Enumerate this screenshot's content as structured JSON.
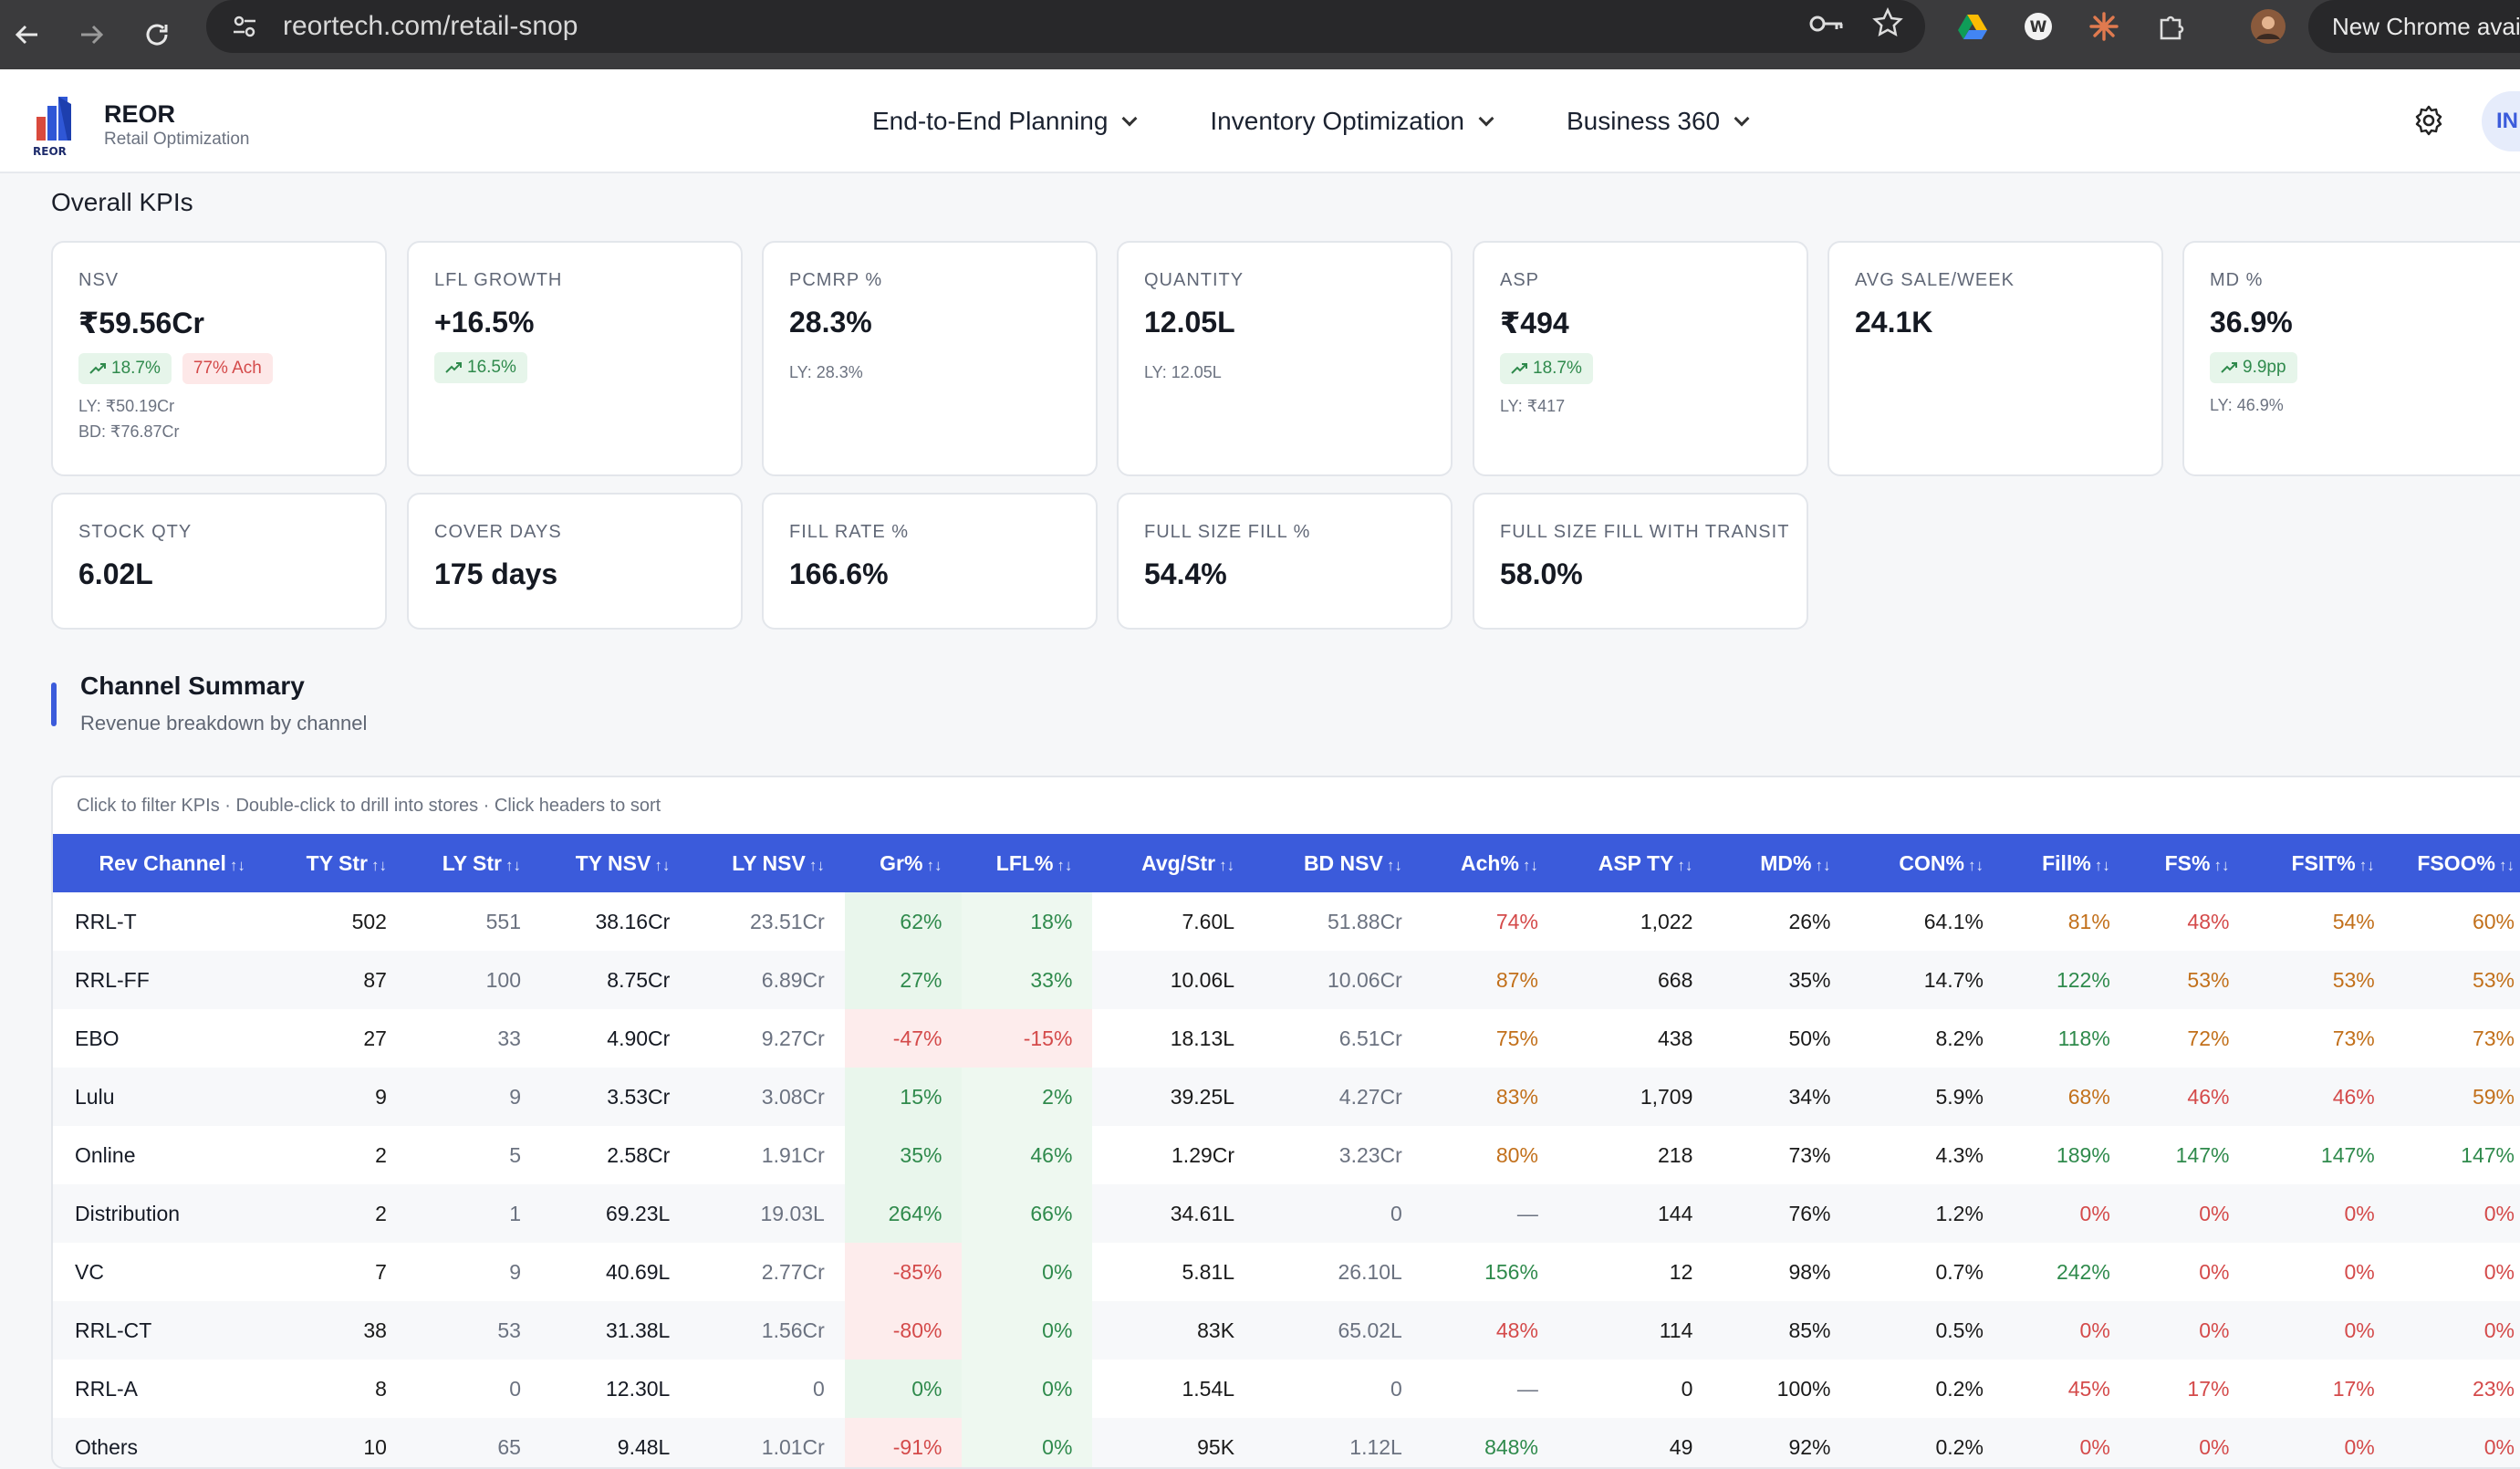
{
  "browser": {
    "url": "reortech.com/retail-snop",
    "chrome_notice": "New Chrome availa"
  },
  "app": {
    "brand_name": "REOR",
    "brand_sub": "Retail Optimization",
    "logo_text": "REOR",
    "nav": [
      {
        "label": "End-to-End Planning"
      },
      {
        "label": "Inventory Optimization"
      },
      {
        "label": "Business 360"
      }
    ],
    "user_chip": "IN"
  },
  "kpis": {
    "title": "Overall KPIs",
    "cards": [
      {
        "label": "NSV",
        "value": "₹59.56Cr",
        "badge_green": "18.7%",
        "badge_red": "77% Ach",
        "sub1": "LY: ₹50.19Cr",
        "sub2": "BD: ₹76.87Cr"
      },
      {
        "label": "LFL GROWTH",
        "value": "+16.5%",
        "badge_green": "16.5%"
      },
      {
        "label": "PCMRP %",
        "value": "28.3%",
        "sub1": "LY: 28.3%"
      },
      {
        "label": "QUANTITY",
        "value": "12.05L",
        "sub1": "LY: 12.05L"
      },
      {
        "label": "ASP",
        "value": "₹494",
        "badge_green": "18.7%",
        "sub1": "LY: ₹417"
      },
      {
        "label": "AVG SALE/WEEK",
        "value": "24.1K"
      },
      {
        "label": "MD %",
        "value": "36.9%",
        "badge_green": "9.9pp",
        "sub1": "LY: 46.9%"
      },
      {
        "label": "STOCK QTY",
        "value": "6.02L"
      },
      {
        "label": "COVER DAYS",
        "value": "175 days"
      },
      {
        "label": "FILL RATE %",
        "value": "166.6%"
      },
      {
        "label": "FULL SIZE FILL %",
        "value": "54.4%"
      },
      {
        "label": "FULL SIZE FILL WITH TRANSIT",
        "value": "58.0%"
      }
    ]
  },
  "channel_summary": {
    "title": "Channel Summary",
    "subtitle": "Revenue breakdown by channel",
    "hint": "Click to filter KPIs · Double-click to drill into stores · Click headers to sort",
    "sort_glyph": "↑↓",
    "columns": [
      "Rev Channel",
      "TY Str",
      "LY Str",
      "TY NSV",
      "LY NSV",
      "Gr%",
      "LFL%",
      "Avg/Str",
      "BD NSV",
      "Ach%",
      "ASP TY",
      "MD%",
      "CON%",
      "Fill%",
      "FS%",
      "FSIT%",
      "FSOO%"
    ],
    "rows": [
      {
        "channel": "RRL-T",
        "ty_str": "502",
        "ly_str": "551",
        "ty_nsv": "38.16Cr",
        "ly_nsv": "23.51Cr",
        "gr": "62%",
        "lfl": "18%",
        "avg_str": "7.60L",
        "bd_nsv": "51.88Cr",
        "ach": "74%",
        "asp_ty": "1,022",
        "md": "26%",
        "con": "64.1%",
        "fill": "81%",
        "fs": "48%",
        "fsit": "54%",
        "fsoo": "60%"
      },
      {
        "channel": "RRL-FF",
        "ty_str": "87",
        "ly_str": "100",
        "ty_nsv": "8.75Cr",
        "ly_nsv": "6.89Cr",
        "gr": "27%",
        "lfl": "33%",
        "avg_str": "10.06L",
        "bd_nsv": "10.06Cr",
        "ach": "87%",
        "asp_ty": "668",
        "md": "35%",
        "con": "14.7%",
        "fill": "122%",
        "fs": "53%",
        "fsit": "53%",
        "fsoo": "53%"
      },
      {
        "channel": "EBO",
        "ty_str": "27",
        "ly_str": "33",
        "ty_nsv": "4.90Cr",
        "ly_nsv": "9.27Cr",
        "gr": "-47%",
        "lfl": "-15%",
        "avg_str": "18.13L",
        "bd_nsv": "6.51Cr",
        "ach": "75%",
        "asp_ty": "438",
        "md": "50%",
        "con": "8.2%",
        "fill": "118%",
        "fs": "72%",
        "fsit": "73%",
        "fsoo": "73%"
      },
      {
        "channel": "Lulu",
        "ty_str": "9",
        "ly_str": "9",
        "ty_nsv": "3.53Cr",
        "ly_nsv": "3.08Cr",
        "gr": "15%",
        "lfl": "2%",
        "avg_str": "39.25L",
        "bd_nsv": "4.27Cr",
        "ach": "83%",
        "asp_ty": "1,709",
        "md": "34%",
        "con": "5.9%",
        "fill": "68%",
        "fs": "46%",
        "fsit": "46%",
        "fsoo": "59%"
      },
      {
        "channel": "Online",
        "ty_str": "2",
        "ly_str": "5",
        "ty_nsv": "2.58Cr",
        "ly_nsv": "1.91Cr",
        "gr": "35%",
        "lfl": "46%",
        "avg_str": "1.29Cr",
        "bd_nsv": "3.23Cr",
        "ach": "80%",
        "asp_ty": "218",
        "md": "73%",
        "con": "4.3%",
        "fill": "189%",
        "fs": "147%",
        "fsit": "147%",
        "fsoo": "147%"
      },
      {
        "channel": "Distribution",
        "ty_str": "2",
        "ly_str": "1",
        "ty_nsv": "69.23L",
        "ly_nsv": "19.03L",
        "gr": "264%",
        "lfl": "66%",
        "avg_str": "34.61L",
        "bd_nsv": "0",
        "ach": "—",
        "asp_ty": "144",
        "md": "76%",
        "con": "1.2%",
        "fill": "0%",
        "fs": "0%",
        "fsit": "0%",
        "fsoo": "0%"
      },
      {
        "channel": "VC",
        "ty_str": "7",
        "ly_str": "9",
        "ty_nsv": "40.69L",
        "ly_nsv": "2.77Cr",
        "gr": "-85%",
        "lfl": "0%",
        "avg_str": "5.81L",
        "bd_nsv": "26.10L",
        "ach": "156%",
        "asp_ty": "12",
        "md": "98%",
        "con": "0.7%",
        "fill": "242%",
        "fs": "0%",
        "fsit": "0%",
        "fsoo": "0%"
      },
      {
        "channel": "RRL-CT",
        "ty_str": "38",
        "ly_str": "53",
        "ty_nsv": "31.38L",
        "ly_nsv": "1.56Cr",
        "gr": "-80%",
        "lfl": "0%",
        "avg_str": "83K",
        "bd_nsv": "65.02L",
        "ach": "48%",
        "asp_ty": "114",
        "md": "85%",
        "con": "0.5%",
        "fill": "0%",
        "fs": "0%",
        "fsit": "0%",
        "fsoo": "0%"
      },
      {
        "channel": "RRL-A",
        "ty_str": "8",
        "ly_str": "0",
        "ty_nsv": "12.30L",
        "ly_nsv": "0",
        "gr": "0%",
        "lfl": "0%",
        "avg_str": "1.54L",
        "bd_nsv": "0",
        "ach": "—",
        "asp_ty": "0",
        "md": "100%",
        "con": "0.2%",
        "fill": "45%",
        "fs": "17%",
        "fsit": "17%",
        "fsoo": "23%"
      },
      {
        "channel": "Others",
        "ty_str": "10",
        "ly_str": "65",
        "ty_nsv": "9.48L",
        "ly_nsv": "1.01Cr",
        "gr": "-91%",
        "lfl": "0%",
        "avg_str": "95K",
        "bd_nsv": "1.12L",
        "ach": "848%",
        "asp_ty": "49",
        "md": "92%",
        "con": "0.2%",
        "fill": "0%",
        "fs": "0%",
        "fsit": "0%",
        "fsoo": "0%"
      }
    ]
  },
  "colors": {
    "accent": "#3b5bdb",
    "positive": "#2f8a4c",
    "negative": "#d44a4a",
    "warning": "#c2701b"
  }
}
